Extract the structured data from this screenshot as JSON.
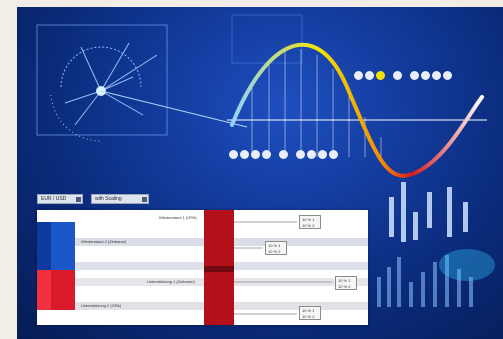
{
  "scene": {
    "description_colors": {
      "background_blue": "#0a2a78",
      "accent_yellow": "#f5e400",
      "accent_red": "#c8101e",
      "accent_cyan": "#31d8ff"
    }
  },
  "panel": {
    "dropdowns": [
      {
        "label": "EUR / USD"
      },
      {
        "label": "with Scaling"
      }
    ],
    "row_labels": [
      "Wiederstand 1 (GPA)",
      "Wiederstand 2 (Zeitraum)",
      "Unterstützung 1 (Zeitraum)",
      "Unterstützung 2 (GPA)"
    ],
    "qty_boxes": [
      {
        "a": "10 % 1",
        "b": "10 % 2"
      },
      {
        "a": "10 % 1",
        "b": "10 % 2"
      },
      {
        "a": "10 % 1",
        "b": "10 % 2"
      },
      {
        "a": "10 % 1",
        "b": "10 % 2"
      }
    ]
  }
}
